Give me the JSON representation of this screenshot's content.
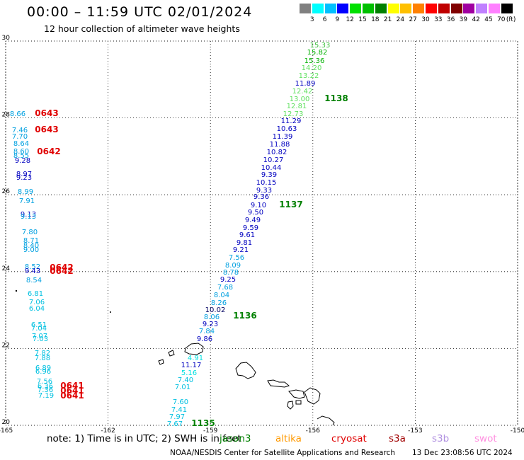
{
  "header": {
    "title": "00:00 – 11:59 UTC 02/01/2024",
    "subtitle": "12 hour collection of altimeter wave heights"
  },
  "colorscale": {
    "unit_label": "(ft)",
    "colors": [
      "#808080",
      "#00ffff",
      "#00c0ff",
      "#0000ff",
      "#00e000",
      "#00c000",
      "#008000",
      "#ffff00",
      "#ffc000",
      "#ff8000",
      "#ff0000",
      "#c00000",
      "#800000",
      "#a000a0",
      "#c080ff",
      "#ff80ff",
      "#000000"
    ],
    "labels": [
      "3",
      "6",
      "9",
      "12",
      "15",
      "18",
      "21",
      "24",
      "27",
      "30",
      "33",
      "36",
      "39",
      "42",
      "45",
      "70"
    ]
  },
  "map_axes": {
    "lon_ticks": [
      "-165",
      "-162",
      "-159",
      "-156",
      "-153",
      "-150"
    ],
    "lon_values": [
      -165,
      -162,
      -159,
      -156,
      -153,
      -150
    ],
    "lat_ticks": [
      "30",
      "28",
      "26",
      "24",
      "22",
      "20"
    ],
    "lat_values": [
      30,
      28,
      26,
      24,
      22,
      20
    ]
  },
  "tracks": [
    {
      "id": "t1137",
      "color_pass": "#008000",
      "pass_label": "1138",
      "label_color": "#008000"
    }
  ],
  "obs": {
    "east_track": [
      {
        "v": "15.33",
        "c": "#40c040"
      },
      {
        "v": "15.82",
        "c": "#00b000"
      },
      {
        "v": "15.36",
        "c": "#00b000"
      },
      {
        "v": "14.20",
        "c": "#60e060"
      },
      {
        "v": "13.22",
        "c": "#60e060"
      },
      {
        "v": "11.89",
        "c": "#0000c0"
      },
      {
        "v": "12.42",
        "c": "#60e060"
      },
      {
        "v": "13.00",
        "c": "#60e060"
      },
      {
        "v": "12.81",
        "c": "#60e060"
      },
      {
        "v": "12.73",
        "c": "#60e060"
      },
      {
        "v": "11.29",
        "c": "#0000c0"
      },
      {
        "v": "10.63",
        "c": "#0000c0"
      },
      {
        "v": "11.39",
        "c": "#0000c0"
      },
      {
        "v": "11.88",
        "c": "#0000c0"
      },
      {
        "v": "10.82",
        "c": "#0000c0"
      },
      {
        "v": "10.27",
        "c": "#0000c0"
      },
      {
        "v": "10.44",
        "c": "#0000c0"
      },
      {
        "v": "9.39",
        "c": "#0000c0"
      },
      {
        "v": "10.15",
        "c": "#0000c0"
      },
      {
        "v": "9.33",
        "c": "#0000c0"
      },
      {
        "v": "9.36",
        "c": "#0000c0"
      },
      {
        "v": "9.10",
        "c": "#0000c0"
      },
      {
        "v": "9.50",
        "c": "#0000c0"
      },
      {
        "v": "9.49",
        "c": "#0000c0"
      },
      {
        "v": "9.59",
        "c": "#0000c0"
      },
      {
        "v": "9.61",
        "c": "#0000c0"
      },
      {
        "v": "9.81",
        "c": "#0000c0"
      },
      {
        "v": "9.21",
        "c": "#0000c0"
      },
      {
        "v": "7.56",
        "c": "#00a0e0"
      },
      {
        "v": "8.09",
        "c": "#00a0e0"
      },
      {
        "v": "8.78",
        "c": "#00a0e0"
      },
      {
        "v": "9.25",
        "c": "#0000c0"
      },
      {
        "v": "7.68",
        "c": "#00a0e0"
      },
      {
        "v": "8.04",
        "c": "#00a0e0"
      },
      {
        "v": "8.26",
        "c": "#00a0e0"
      },
      {
        "v": "10.02",
        "c": "#000060"
      },
      {
        "v": "8.06",
        "c": "#00a0e0"
      },
      {
        "v": "9.23",
        "c": "#0000c0"
      },
      {
        "v": "7.84",
        "c": "#00a0e0"
      },
      {
        "v": "9.86",
        "c": "#0000c0"
      },
      {
        "v": "4.91",
        "c": "#00e0e0"
      },
      {
        "v": "11.17",
        "c": "#0000c0"
      },
      {
        "v": "5.16",
        "c": "#00e0e0"
      },
      {
        "v": "7.40",
        "c": "#00c0e0"
      },
      {
        "v": "7.01",
        "c": "#00c0e0"
      },
      {
        "v": "7.60",
        "c": "#00c0e0"
      },
      {
        "v": "7.41",
        "c": "#00c0e0"
      },
      {
        "v": "7.97",
        "c": "#00c0e0"
      },
      {
        "v": "7.67",
        "c": "#00c0e0"
      }
    ],
    "east_passes": [
      "1138",
      "1137",
      "1136",
      "1135"
    ],
    "west_track": [
      {
        "v": "8.66",
        "c": "#00a0e0"
      },
      {
        "v": "7.46",
        "c": "#00a0e0"
      },
      {
        "v": "7.70",
        "c": "#00a0e0"
      },
      {
        "v": "8.64",
        "c": "#00a0e0"
      },
      {
        "v": "8.60",
        "c": "#00a0e0"
      },
      {
        "v": "8.55",
        "c": "#00a0e0"
      },
      {
        "v": "9.28",
        "c": "#0000c0"
      },
      {
        "v": "8.97",
        "c": "#0000c0"
      },
      {
        "v": "9.23",
        "c": "#0000c0"
      },
      {
        "v": "8.99",
        "c": "#00a0e0"
      },
      {
        "v": "7.91",
        "c": "#00a0e0"
      },
      {
        "v": "9.13",
        "c": "#0000c0"
      },
      {
        "v": "9.13",
        "c": "#00a0e0"
      },
      {
        "v": "7.80",
        "c": "#00a0e0"
      },
      {
        "v": "8.71",
        "c": "#00a0e0"
      },
      {
        "v": "8.40",
        "c": "#00a0e0"
      },
      {
        "v": "9.00",
        "c": "#00a0e0"
      },
      {
        "v": "8.52",
        "c": "#00a0e0"
      },
      {
        "v": "9.43",
        "c": "#0000c0"
      },
      {
        "v": "8.54",
        "c": "#00a0e0"
      },
      {
        "v": "6.81",
        "c": "#00c0e0"
      },
      {
        "v": "7.06",
        "c": "#00c0e0"
      },
      {
        "v": "6.04",
        "c": "#00c0e0"
      },
      {
        "v": "6.51",
        "c": "#00c0e0"
      },
      {
        "v": "7.04",
        "c": "#00c0e0"
      },
      {
        "v": "7.07",
        "c": "#00c0e0"
      },
      {
        "v": "7.03",
        "c": "#00c0e0"
      },
      {
        "v": "7.82",
        "c": "#00c0e0"
      },
      {
        "v": "7.88",
        "c": "#00c0e0"
      },
      {
        "v": "6.89",
        "c": "#00c0e0"
      },
      {
        "v": "6.96",
        "c": "#00c0e0"
      },
      {
        "v": "7.56",
        "c": "#00c0e0"
      },
      {
        "v": "6.36",
        "c": "#00c0e0"
      },
      {
        "v": "7.36",
        "c": "#00c0e0"
      },
      {
        "v": "7.19",
        "c": "#00c0e0"
      }
    ],
    "west_passes": [
      "0643",
      "0643",
      "0642",
      "0642",
      "0642",
      "0641",
      "0641",
      "0641"
    ]
  },
  "footer": {
    "note": "note:  1) Time is in UTC;  2) SWH is in feet",
    "missions": [
      {
        "name": "jason3",
        "color": "#008000"
      },
      {
        "name": "altika",
        "color": "#ff9900"
      },
      {
        "name": "cryosat",
        "color": "#e00000"
      },
      {
        "name": "s3a",
        "color": "#a00000"
      },
      {
        "name": "s3b",
        "color": "#b090e0"
      },
      {
        "name": "swot",
        "color": "#ff90e0"
      }
    ],
    "credit": "NOAA/NESDIS Center for Satellite Applications and Research",
    "stamp": "13 Dec 23:08:56 UTC 2024"
  }
}
